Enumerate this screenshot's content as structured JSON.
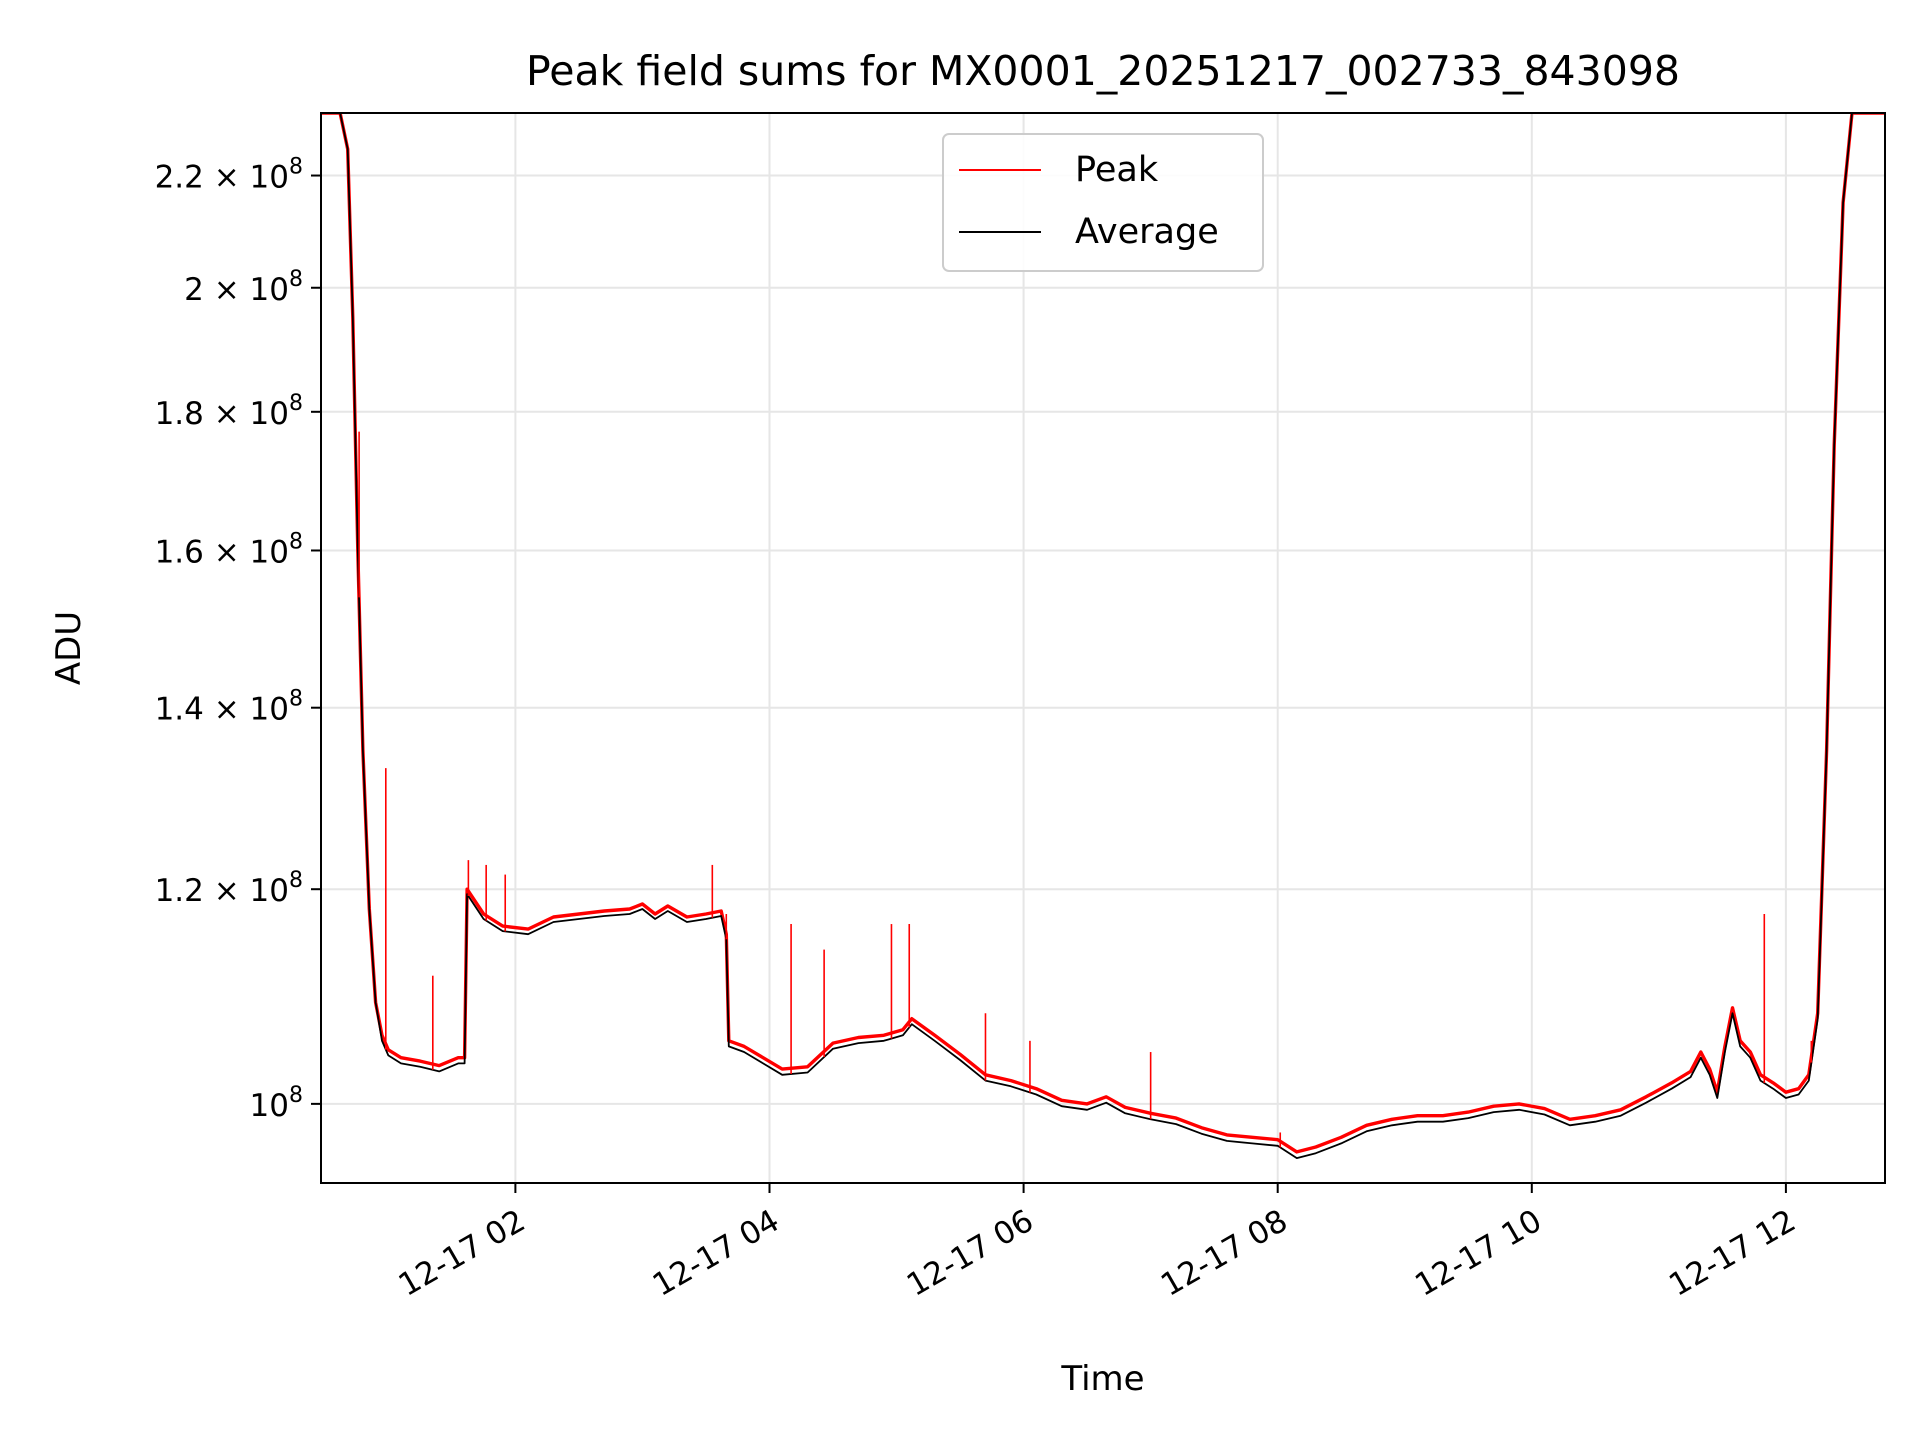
{
  "chart_data": {
    "type": "line",
    "title": "Peak field sums for MX0001_20251217_002733_843098",
    "xlabel": "Time",
    "ylabel": "ADU",
    "yscale": "log",
    "ylim": [
      93500000.0,
      232000000.0
    ],
    "xlim_hours": [
      0.47,
      12.78
    ],
    "grid": true,
    "legend_position": "top-center",
    "x_ticks": [
      {
        "hour": 2,
        "label": "12-17 02"
      },
      {
        "hour": 4,
        "label": "12-17 04"
      },
      {
        "hour": 6,
        "label": "12-17 06"
      },
      {
        "hour": 8,
        "label": "12-17 08"
      },
      {
        "hour": 10,
        "label": "12-17 10"
      },
      {
        "hour": 12,
        "label": "12-17 12"
      }
    ],
    "y_ticks": [
      {
        "value": 100000000.0,
        "mantissa": "",
        "exponent": "8"
      },
      {
        "value": 120000000.0,
        "mantissa": "1.2",
        "exponent": "8"
      },
      {
        "value": 140000000.0,
        "mantissa": "1.4",
        "exponent": "8"
      },
      {
        "value": 160000000.0,
        "mantissa": "1.6",
        "exponent": "8"
      },
      {
        "value": 180000000.0,
        "mantissa": "1.8",
        "exponent": "8"
      },
      {
        "value": 200000000.0,
        "mantissa": "2",
        "exponent": "8"
      },
      {
        "value": 220000000.0,
        "mantissa": "2.2",
        "exponent": "8"
      }
    ],
    "series": [
      {
        "name": "Peak",
        "color": "#ff0000",
        "points": [
          [
            0.47,
            232000000.0
          ],
          [
            0.62,
            232000000.0
          ],
          [
            0.68,
            225000000.0
          ],
          [
            0.72,
            195000000.0
          ],
          [
            0.76,
            160000000.0
          ],
          [
            0.8,
            135000000.0
          ],
          [
            0.85,
            118000000.0
          ],
          [
            0.9,
            109000000.0
          ],
          [
            0.95,
            106000000.0
          ],
          [
            1.0,
            104700000.0
          ],
          [
            1.1,
            104000000.0
          ],
          [
            1.25,
            103700000.0
          ],
          [
            1.4,
            103300000.0
          ],
          [
            1.55,
            104000000.0
          ],
          [
            1.6,
            104000000.0
          ],
          [
            1.62,
            120000000.0
          ],
          [
            1.75,
            117500000.0
          ],
          [
            1.9,
            116300000.0
          ],
          [
            2.1,
            116000000.0
          ],
          [
            2.3,
            117200000.0
          ],
          [
            2.5,
            117500000.0
          ],
          [
            2.7,
            117800000.0
          ],
          [
            2.9,
            118000000.0
          ],
          [
            3.0,
            118500000.0
          ],
          [
            3.1,
            117500000.0
          ],
          [
            3.2,
            118300000.0
          ],
          [
            3.35,
            117200000.0
          ],
          [
            3.5,
            117500000.0
          ],
          [
            3.62,
            117800000.0
          ],
          [
            3.66,
            115500000.0
          ],
          [
            3.68,
            105500000.0
          ],
          [
            3.8,
            105000000.0
          ],
          [
            3.95,
            104000000.0
          ],
          [
            4.1,
            103000000.0
          ],
          [
            4.3,
            103200000.0
          ],
          [
            4.5,
            105300000.0
          ],
          [
            4.7,
            105800000.0
          ],
          [
            4.9,
            106000000.0
          ],
          [
            5.05,
            106500000.0
          ],
          [
            5.12,
            107500000.0
          ],
          [
            5.3,
            106000000.0
          ],
          [
            5.5,
            104300000.0
          ],
          [
            5.7,
            102500000.0
          ],
          [
            5.9,
            102000000.0
          ],
          [
            6.1,
            101300000.0
          ],
          [
            6.3,
            100300000.0
          ],
          [
            6.5,
            100000000.0
          ],
          [
            6.65,
            100600000.0
          ],
          [
            6.8,
            99700000.0
          ],
          [
            7.0,
            99200000.0
          ],
          [
            7.2,
            98800000.0
          ],
          [
            7.4,
            98000000.0
          ],
          [
            7.6,
            97400000.0
          ],
          [
            7.8,
            97200000.0
          ],
          [
            8.0,
            97000000.0
          ],
          [
            8.15,
            96000000.0
          ],
          [
            8.3,
            96400000.0
          ],
          [
            8.5,
            97200000.0
          ],
          [
            8.7,
            98200000.0
          ],
          [
            8.9,
            98700000.0
          ],
          [
            9.1,
            99000000.0
          ],
          [
            9.3,
            99000000.0
          ],
          [
            9.5,
            99300000.0
          ],
          [
            9.7,
            99800000.0
          ],
          [
            9.9,
            100000000.0
          ],
          [
            10.1,
            99600000.0
          ],
          [
            10.3,
            98700000.0
          ],
          [
            10.5,
            99000000.0
          ],
          [
            10.7,
            99500000.0
          ],
          [
            10.9,
            100600000.0
          ],
          [
            11.1,
            101800000.0
          ],
          [
            11.25,
            102800000.0
          ],
          [
            11.33,
            104500000.0
          ],
          [
            11.4,
            103000000.0
          ],
          [
            11.46,
            101000000.0
          ],
          [
            11.52,
            105000000.0
          ],
          [
            11.58,
            108500000.0
          ],
          [
            11.64,
            105500000.0
          ],
          [
            11.72,
            104500000.0
          ],
          [
            11.8,
            102500000.0
          ],
          [
            11.9,
            101800000.0
          ],
          [
            12.0,
            101000000.0
          ],
          [
            12.1,
            101300000.0
          ],
          [
            12.18,
            102500000.0
          ],
          [
            12.25,
            108000000.0
          ],
          [
            12.32,
            135000000.0
          ],
          [
            12.38,
            175000000.0
          ],
          [
            12.45,
            215000000.0
          ],
          [
            12.52,
            232000000.0
          ],
          [
            12.78,
            232000000.0
          ]
        ]
      },
      {
        "name": "Average",
        "color": "#000000",
        "points": [
          [
            0.47,
            232000000.0
          ],
          [
            0.62,
            232000000.0
          ],
          [
            0.68,
            225000000.0
          ],
          [
            0.72,
            195000000.0
          ],
          [
            0.76,
            160000000.0
          ],
          [
            0.8,
            135000000.0
          ],
          [
            0.85,
            118000000.0
          ],
          [
            0.9,
            109000000.0
          ],
          [
            0.95,
            105500000.0
          ],
          [
            1.0,
            104200000.0
          ],
          [
            1.1,
            103500000.0
          ],
          [
            1.25,
            103200000.0
          ],
          [
            1.4,
            102800000.0
          ],
          [
            1.55,
            103500000.0
          ],
          [
            1.6,
            103500000.0
          ],
          [
            1.62,
            119500000.0
          ],
          [
            1.75,
            117000000.0
          ],
          [
            1.9,
            115800000.0
          ],
          [
            2.1,
            115500000.0
          ],
          [
            2.3,
            116700000.0
          ],
          [
            2.5,
            117000000.0
          ],
          [
            2.7,
            117300000.0
          ],
          [
            2.9,
            117500000.0
          ],
          [
            3.0,
            118000000.0
          ],
          [
            3.1,
            117000000.0
          ],
          [
            3.2,
            117800000.0
          ],
          [
            3.35,
            116700000.0
          ],
          [
            3.5,
            117000000.0
          ],
          [
            3.62,
            117300000.0
          ],
          [
            3.66,
            115000000.0
          ],
          [
            3.68,
            105000000.0
          ],
          [
            3.8,
            104500000.0
          ],
          [
            3.95,
            103500000.0
          ],
          [
            4.1,
            102500000.0
          ],
          [
            4.3,
            102700000.0
          ],
          [
            4.5,
            104800000.0
          ],
          [
            4.7,
            105300000.0
          ],
          [
            4.9,
            105500000.0
          ],
          [
            5.05,
            106000000.0
          ],
          [
            5.12,
            107000000.0
          ],
          [
            5.3,
            105500000.0
          ],
          [
            5.5,
            103800000.0
          ],
          [
            5.7,
            102000000.0
          ],
          [
            5.9,
            101500000.0
          ],
          [
            6.1,
            100800000.0
          ],
          [
            6.3,
            99800000.0
          ],
          [
            6.5,
            99500000.0
          ],
          [
            6.65,
            100100000.0
          ],
          [
            6.8,
            99200000.0
          ],
          [
            7.0,
            98700000.0
          ],
          [
            7.2,
            98300000.0
          ],
          [
            7.4,
            97500000.0
          ],
          [
            7.6,
            96900000.0
          ],
          [
            7.8,
            96700000.0
          ],
          [
            8.0,
            96500000.0
          ],
          [
            8.15,
            95500000.0
          ],
          [
            8.3,
            95900000.0
          ],
          [
            8.5,
            96700000.0
          ],
          [
            8.7,
            97700000.0
          ],
          [
            8.9,
            98200000.0
          ],
          [
            9.1,
            98500000.0
          ],
          [
            9.3,
            98500000.0
          ],
          [
            9.5,
            98800000.0
          ],
          [
            9.7,
            99300000.0
          ],
          [
            9.9,
            99500000.0
          ],
          [
            10.1,
            99100000.0
          ],
          [
            10.3,
            98200000.0
          ],
          [
            10.5,
            98500000.0
          ],
          [
            10.7,
            99000000.0
          ],
          [
            10.9,
            100100000.0
          ],
          [
            11.1,
            101300000.0
          ],
          [
            11.25,
            102300000.0
          ],
          [
            11.33,
            104000000.0
          ],
          [
            11.4,
            102500000.0
          ],
          [
            11.46,
            100500000.0
          ],
          [
            11.52,
            104500000.0
          ],
          [
            11.58,
            108000000.0
          ],
          [
            11.64,
            105000000.0
          ],
          [
            11.72,
            104000000.0
          ],
          [
            11.8,
            102000000.0
          ],
          [
            11.9,
            101300000.0
          ],
          [
            12.0,
            100500000.0
          ],
          [
            12.1,
            100800000.0
          ],
          [
            12.18,
            102000000.0
          ],
          [
            12.25,
            107500000.0
          ],
          [
            12.32,
            135000000.0
          ],
          [
            12.38,
            175000000.0
          ],
          [
            12.45,
            215000000.0
          ],
          [
            12.52,
            232000000.0
          ],
          [
            12.78,
            232000000.0
          ]
        ]
      }
    ],
    "peak_spikes": [
      [
        0.77,
        177000000.0
      ],
      [
        0.98,
        133000000.0
      ],
      [
        1.35,
        111500000.0
      ],
      [
        1.63,
        123000000.0
      ],
      [
        1.77,
        122500000.0
      ],
      [
        1.92,
        121500000.0
      ],
      [
        3.55,
        122500000.0
      ],
      [
        3.66,
        117500000.0
      ],
      [
        4.17,
        116500000.0
      ],
      [
        4.43,
        114000000.0
      ],
      [
        4.96,
        116500000.0
      ],
      [
        5.1,
        116500000.0
      ],
      [
        5.7,
        108000000.0
      ],
      [
        6.05,
        105500000.0
      ],
      [
        7.0,
        104500000.0
      ],
      [
        8.02,
        97600000.0
      ],
      [
        11.83,
        117500000.0
      ],
      [
        12.2,
        105500000.0
      ]
    ],
    "legend": [
      {
        "label": "Peak",
        "color": "#ff0000"
      },
      {
        "label": "Average",
        "color": "#000000"
      }
    ]
  }
}
